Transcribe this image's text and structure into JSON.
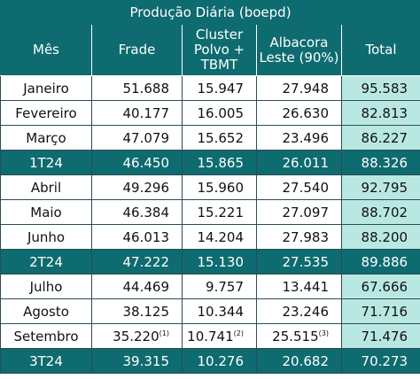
{
  "title": "Produção Diária (boepd)",
  "headers": [
    "Mês",
    "Frade",
    "Cluster Polvo + TBMT",
    "Albacora Leste (90%)",
    "Total"
  ],
  "rows": [
    {
      "kind": "month",
      "label": "Janeiro",
      "frade": "51.688",
      "polvo": "15.947",
      "albacora": "27.948",
      "total": "95.583"
    },
    {
      "kind": "month",
      "label": "Fevereiro",
      "frade": "40.177",
      "polvo": "16.005",
      "albacora": "26.630",
      "total": "82.813"
    },
    {
      "kind": "month",
      "label": "Março",
      "frade": "47.079",
      "polvo": "15.652",
      "albacora": "23.496",
      "total": "86.227"
    },
    {
      "kind": "quarter",
      "label": "1T24",
      "frade": "46.450",
      "polvo": "15.865",
      "albacora": "26.011",
      "total": "88.326"
    },
    {
      "kind": "month",
      "label": "Abril",
      "frade": "49.296",
      "polvo": "15.960",
      "albacora": "27.540",
      "total": "92.795"
    },
    {
      "kind": "month",
      "label": "Maio",
      "frade": "46.384",
      "polvo": "15.221",
      "albacora": "27.097",
      "total": "88.702"
    },
    {
      "kind": "month",
      "label": "Junho",
      "frade": "46.013",
      "polvo": "14.204",
      "albacora": "27.983",
      "total": "88.200"
    },
    {
      "kind": "quarter",
      "label": "2T24",
      "frade": "47.222",
      "polvo": "15.130",
      "albacora": "27.535",
      "total": "89.886"
    },
    {
      "kind": "month",
      "label": "Julho",
      "frade": "44.469",
      "polvo": "9.757",
      "albacora": "13.441",
      "total": "67.666"
    },
    {
      "kind": "month",
      "label": "Agosto",
      "frade": "38.125",
      "polvo": "10.344",
      "albacora": "23.246",
      "total": "71.716"
    },
    {
      "kind": "month",
      "label": "Setembro",
      "frade": "35.220",
      "frade_note": "(1)",
      "polvo": "10.741",
      "polvo_note": "(2)",
      "albacora": "25.515",
      "albacora_note": "(3)",
      "total": "71.476"
    },
    {
      "kind": "quarter",
      "label": "3T24",
      "frade": "39.315",
      "polvo": "10.276",
      "albacora": "20.682",
      "total": "70.273"
    }
  ],
  "colors": {
    "header_bg": "#0e6b6f",
    "total_bg": "#b9e8e2",
    "border": "#2b4d55"
  }
}
